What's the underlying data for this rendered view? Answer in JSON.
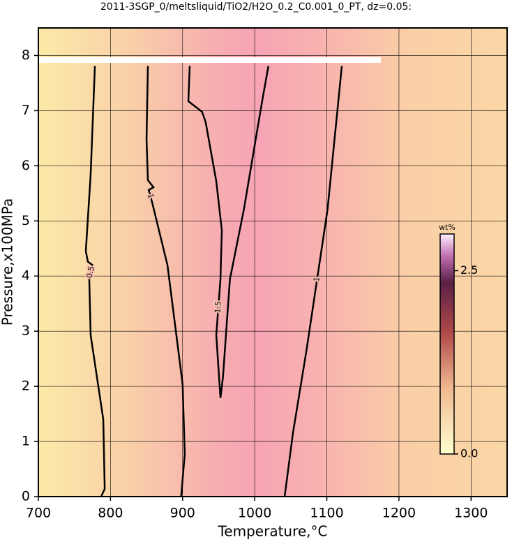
{
  "chart_data": {
    "type": "contour",
    "title": "2011-3SGP_0/meltsliquid/TiO2/H2O_0.2_C0.001_0_PT, dz=0.05:",
    "x_label": "Temperature,°C",
    "y_label": "Pressure,x100MPa",
    "xlim": [
      700,
      1350
    ],
    "ylim": [
      0,
      8.5
    ],
    "xticks": [
      700,
      800,
      900,
      1000,
      1100,
      1200,
      1300
    ],
    "yticks": [
      0,
      1,
      2,
      3,
      4,
      5,
      6,
      7,
      8
    ],
    "grid": true,
    "contours": [
      {
        "level": 0.5,
        "x": [
          787,
          792,
          790,
          772.5,
          770.6,
          775,
          768.7,
          765.8,
          772.5,
          778.4
        ],
        "y": [
          0,
          0.14,
          1.4,
          2.93,
          3.94,
          4.2,
          4.26,
          4.45,
          5.84,
          7.81
        ]
      },
      {
        "level": 1,
        "x": [
          898,
          903,
          900,
          879,
          857.7,
          853,
          859.6,
          851.9,
          850,
          851.9
        ],
        "y": [
          0,
          0.77,
          2.04,
          4.2,
          5.34,
          5.56,
          5.61,
          5.74,
          6.48,
          7.81
        ]
      },
      {
        "level": 1.5,
        "x": [
          909.9,
          908,
          927,
          932,
          946.7,
          954.4,
          952.5,
          946.7,
          952.5,
          956,
          965.6,
          985,
          1009.5,
          1019
        ],
        "y": [
          7.81,
          7.17,
          6.98,
          6.79,
          5.72,
          4.83,
          3.94,
          2.93,
          1.79,
          2.17,
          3.94,
          5.21,
          7.11,
          7.81
        ]
      },
      {
        "level": 1,
        "x": [
          1041.5,
          1053,
          1072,
          1101,
          1120.8
        ],
        "y": [
          0,
          1.15,
          2.67,
          5.21,
          7.81
        ]
      }
    ],
    "colorbar": {
      "label": "wt%",
      "clim": [
        0,
        3.0
      ],
      "ticks": [
        {
          "value": 0,
          "label": "0.0"
        },
        2.5
      ]
    }
  }
}
